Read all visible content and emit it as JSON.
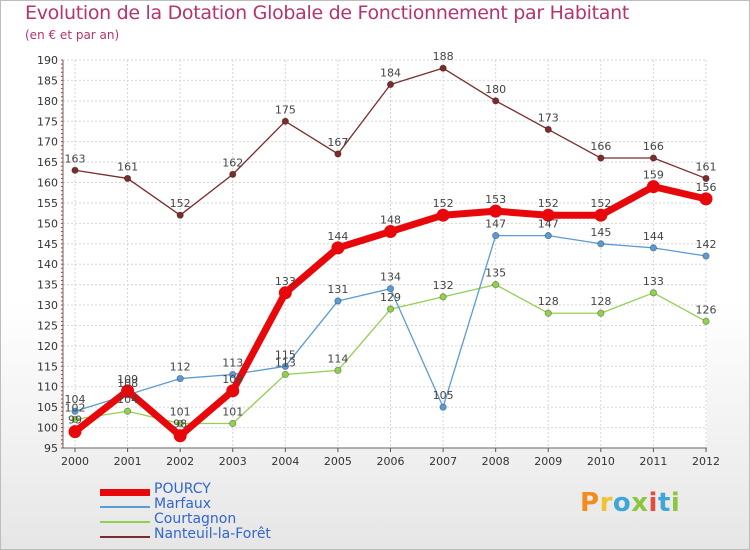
{
  "header": {
    "title": "Evolution de la Dotation Globale de Fonctionnement par Habitant",
    "subtitle": "(en € et par an)"
  },
  "logo": {
    "text": "Proxiti",
    "colors": [
      "#f28c1f",
      "#f2c230",
      "#3fa6d8",
      "#8cc63f",
      "#e84a3c",
      "#3fa6d8",
      "#8cc63f"
    ]
  },
  "chart_data": {
    "type": "line",
    "title": "Evolution de la Dotation Globale de Fonctionnement par Habitant",
    "subtitle": "(en € et par an)",
    "xlabel": "",
    "ylabel": "",
    "ylim": [
      95,
      190
    ],
    "yticks": [
      95,
      100,
      105,
      110,
      115,
      120,
      125,
      130,
      135,
      140,
      145,
      150,
      155,
      160,
      165,
      170,
      175,
      180,
      185,
      190
    ],
    "grid": true,
    "x": [
      "2000",
      "2001",
      "2002",
      "2003",
      "2004",
      "2005",
      "2006",
      "2007",
      "2008",
      "2009",
      "2010",
      "2011",
      "2012"
    ],
    "series": [
      {
        "name": "POURCY",
        "color": "#e8080b",
        "values": [
          99,
          109,
          98,
          109,
          133,
          144,
          148,
          152,
          153,
          152,
          152,
          159,
          156
        ]
      },
      {
        "name": "Marfaux",
        "color": "#5b9bd5",
        "values": [
          104,
          108,
          112,
          113,
          115,
          131,
          134,
          105,
          147,
          147,
          145,
          144,
          142
        ]
      },
      {
        "name": "Courtagnon",
        "color": "#92d050",
        "values": [
          102,
          104,
          101,
          101,
          113,
          114,
          129,
          132,
          135,
          128,
          128,
          133,
          126
        ]
      },
      {
        "name": "Nanteuil-la-Forêt",
        "color": "#7b2c2c",
        "values": [
          163,
          161,
          152,
          162,
          175,
          167,
          184,
          188,
          180,
          173,
          166,
          166,
          161
        ]
      }
    ]
  }
}
